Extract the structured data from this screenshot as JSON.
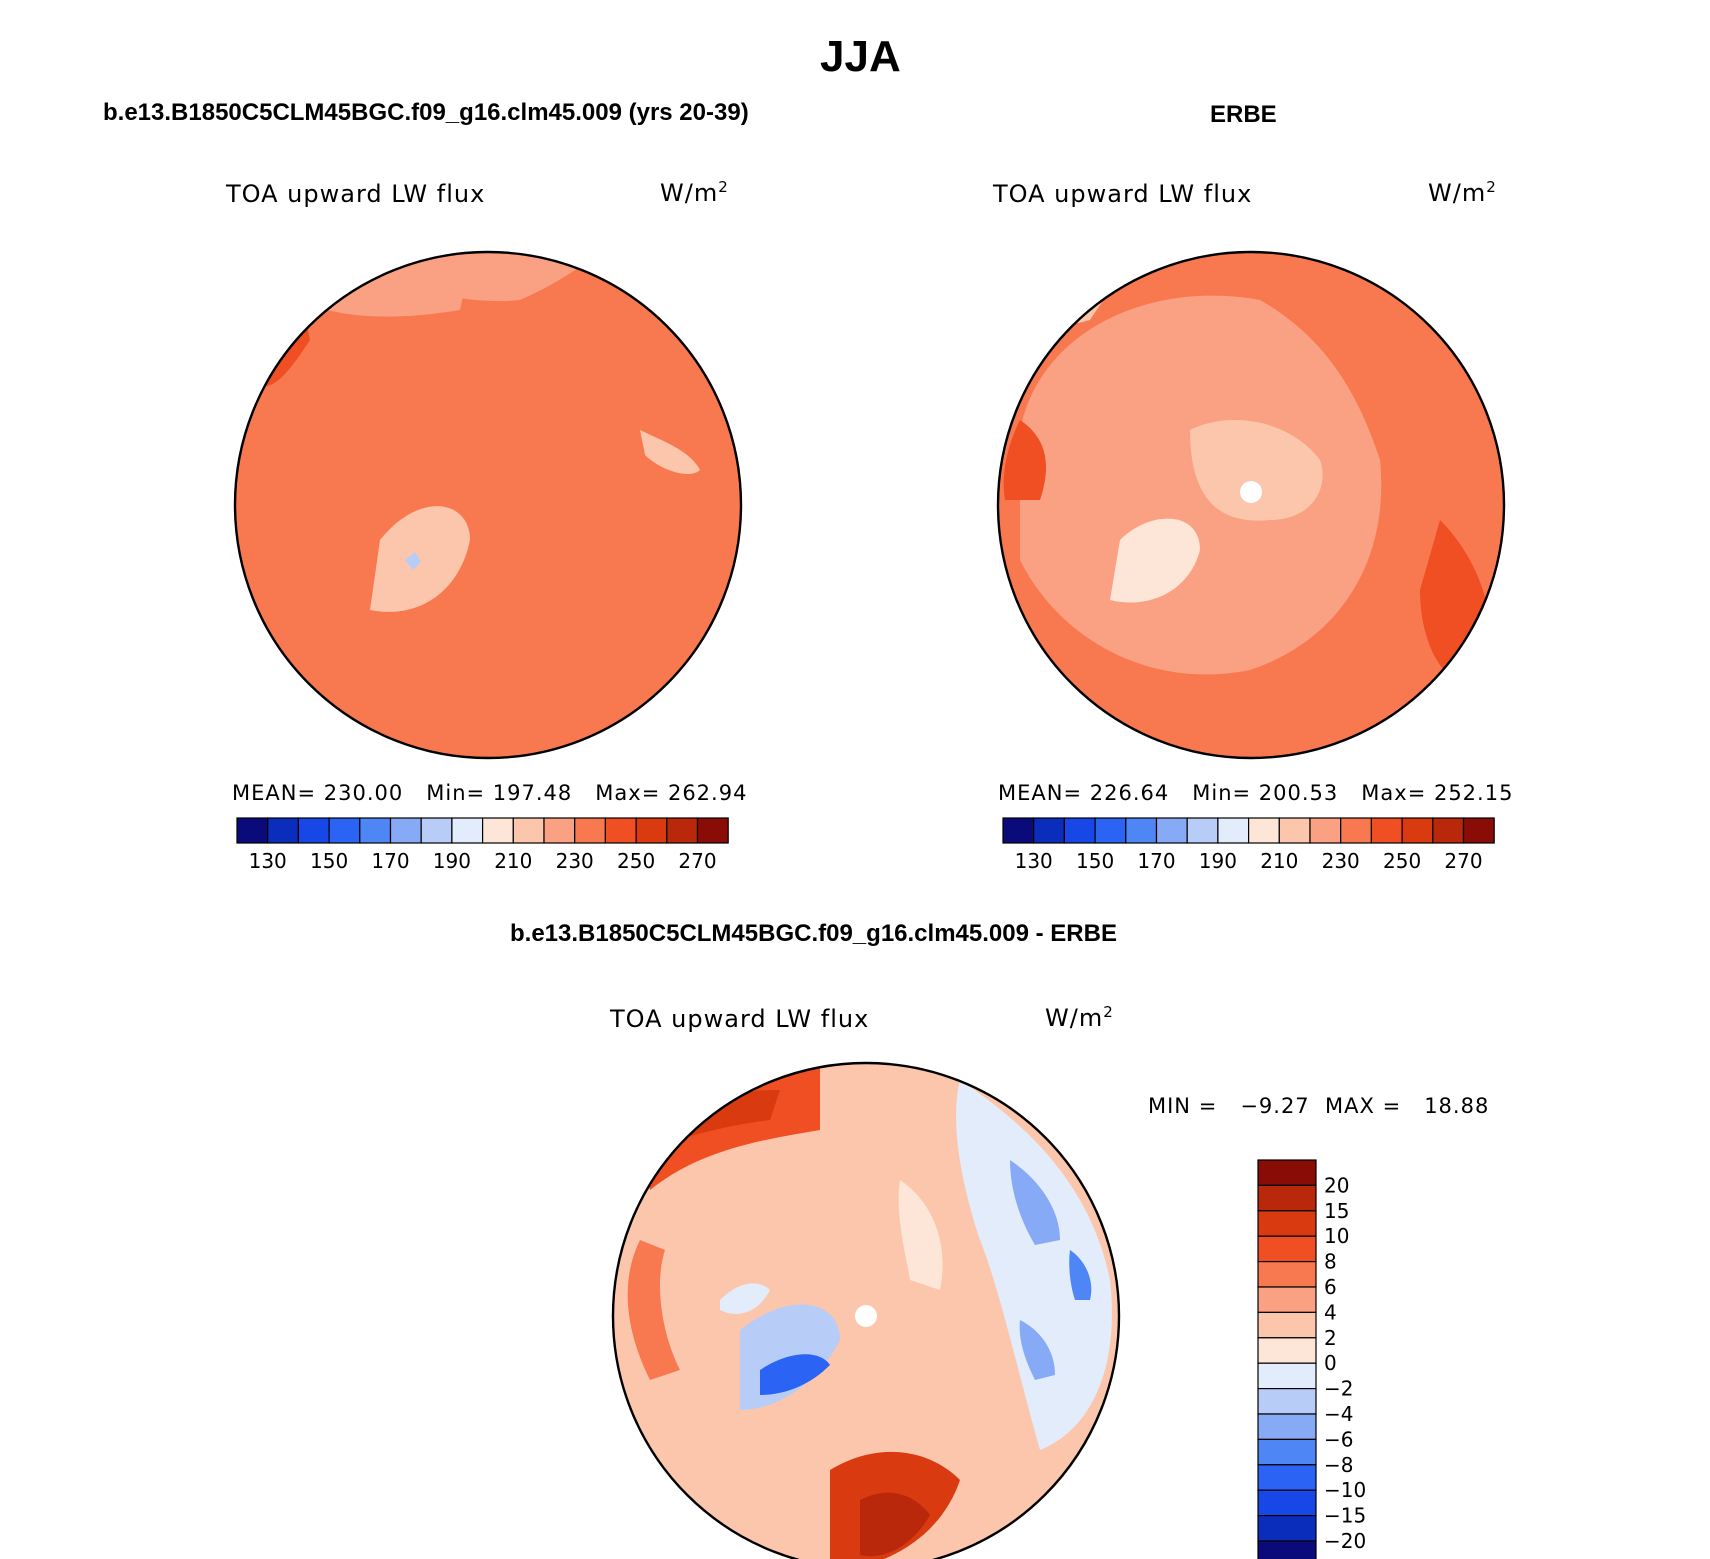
{
  "title": "JJA",
  "colors": {
    "hbar": [
      "#0a0a7a",
      "#0b2dbb",
      "#1747e6",
      "#2b63f5",
      "#4f86f5",
      "#86aaf5",
      "#b7cdf7",
      "#e2ecfb",
      "#fde6d8",
      "#fcc6ad",
      "#fba183",
      "#f8794f",
      "#ef4f22",
      "#d93a10",
      "#b9280a",
      "#8a0c06"
    ],
    "vbar": [
      "#8a0c06",
      "#b9280a",
      "#d93a10",
      "#ef4f22",
      "#f8794f",
      "#fba183",
      "#fcc6ad",
      "#fde6d8",
      "#e2ecfb",
      "#b7cdf7",
      "#86aaf5",
      "#4f86f5",
      "#2b63f5",
      "#1747e6",
      "#0b2dbb",
      "#0a0a7a"
    ]
  },
  "panels": {
    "model": {
      "title": "b.e13.B1850C5CLM45BGC.f09_g16.clm45.009 (yrs 20-39)",
      "variable": "TOA upward LW flux",
      "units": "W/m",
      "units_exp": "2",
      "stats": "MEAN= 230.00   Min= 197.48   Max= 262.94",
      "colorbar_labels": [
        "130",
        "150",
        "170",
        "190",
        "210",
        "230",
        "250",
        "270"
      ]
    },
    "obs": {
      "title": "ERBE",
      "variable": "TOA upward LW flux",
      "units": "W/m",
      "units_exp": "2",
      "stats": "MEAN= 226.64   Min= 200.53   Max= 252.15",
      "colorbar_labels": [
        "130",
        "150",
        "170",
        "190",
        "210",
        "230",
        "250",
        "270"
      ]
    },
    "diff": {
      "title": "b.e13.B1850C5CLM45BGC.f09_g16.clm45.009 - ERBE",
      "variable": "TOA upward LW flux",
      "units": "W/m",
      "units_exp": "2",
      "minmax": "MIN =   −9.27  MAX =   18.88",
      "colorbar_labels": [
        "20",
        "15",
        "10",
        "8",
        "6",
        "4",
        "2",
        "0",
        "−2",
        "−4",
        "−6",
        "−8",
        "−10",
        "−15",
        "−20"
      ]
    }
  }
}
